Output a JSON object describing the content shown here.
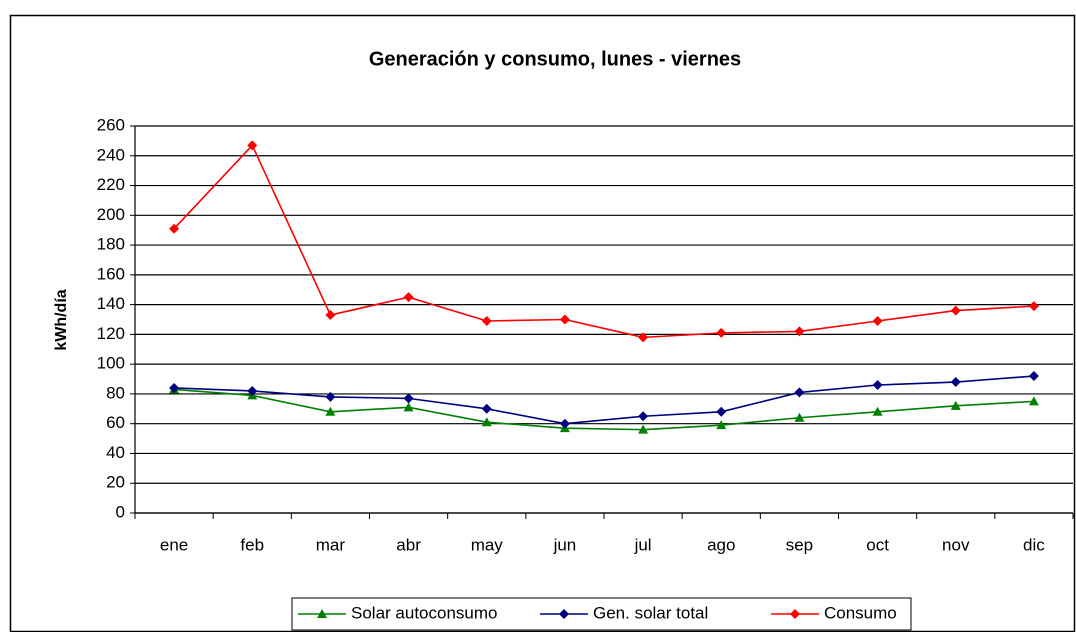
{
  "chart_data": {
    "type": "line",
    "title": "Generación y consumo, lunes - viernes",
    "y_label": "kWh/día",
    "categories": [
      "ene",
      "feb",
      "mar",
      "abr",
      "may",
      "jun",
      "jul",
      "ago",
      "sep",
      "oct",
      "nov",
      "dic"
    ],
    "series": [
      {
        "name": "Solar autoconsumo",
        "color": "#008000",
        "marker": "triangle",
        "values": [
          83,
          79,
          68,
          71,
          61,
          57,
          56,
          59,
          64,
          68,
          72,
          75
        ]
      },
      {
        "name": "Gen. solar total",
        "color": "#000080",
        "marker": "diamond",
        "values": [
          84,
          82,
          78,
          77,
          70,
          60,
          65,
          68,
          81,
          86,
          88,
          92
        ]
      },
      {
        "name": "Consumo",
        "color": "#ff0000",
        "marker": "diamond",
        "values": [
          191,
          247,
          133,
          145,
          129,
          130,
          118,
          121,
          122,
          129,
          136,
          139
        ]
      }
    ],
    "ylim": [
      0,
      260
    ],
    "yticks": [
      0,
      20,
      40,
      60,
      80,
      100,
      120,
      140,
      160,
      180,
      200,
      220,
      240,
      260
    ],
    "grid": true,
    "legend": "bottom"
  }
}
